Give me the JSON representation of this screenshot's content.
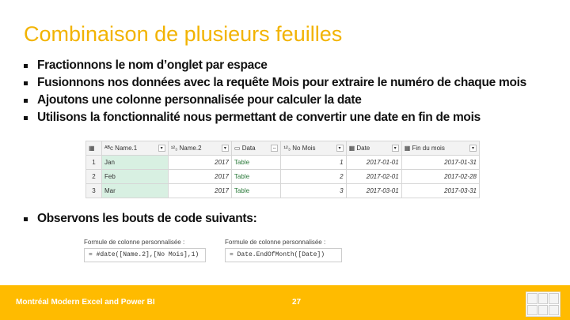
{
  "title": "Combinaison de plusieurs feuilles",
  "bullets": [
    "Fractionnons le nom d’onglet par espace",
    "Fusionnons nos données avec la requête Mois pour extraire le numéro de chaque mois",
    "Ajoutons une colonne personnalisée pour calculer la date",
    "Utilisons la fonctionnalité nous permettant de convertir une date en fin de mois"
  ],
  "bullet2": "Observons les bouts de code suivants:",
  "table": {
    "headers": [
      "Name.1",
      "Name.2",
      "Data",
      "No Mois",
      "Date",
      "Fin du mois"
    ],
    "rows": [
      [
        "1",
        "Jan",
        "2017",
        "Table",
        "1",
        "2017-01-01",
        "2017-01-31"
      ],
      [
        "2",
        "Feb",
        "2017",
        "Table",
        "2",
        "2017-02-01",
        "2017-02-28"
      ],
      [
        "3",
        "Mar",
        "2017",
        "Table",
        "3",
        "2017-03-01",
        "2017-03-31"
      ]
    ]
  },
  "formulas": [
    {
      "label": "Formule de colonne personnalisée :",
      "code": "= #date([Name.2],[No Mois],1)"
    },
    {
      "label": "Formule de colonne personnalisée :",
      "code": "= Date.EndOfMonth([Date])"
    }
  ],
  "footer": {
    "left": "Montréal Modern Excel and Power BI",
    "page": "27"
  },
  "colors": {
    "accent": "#ffbb00",
    "title": "#f2b300"
  }
}
